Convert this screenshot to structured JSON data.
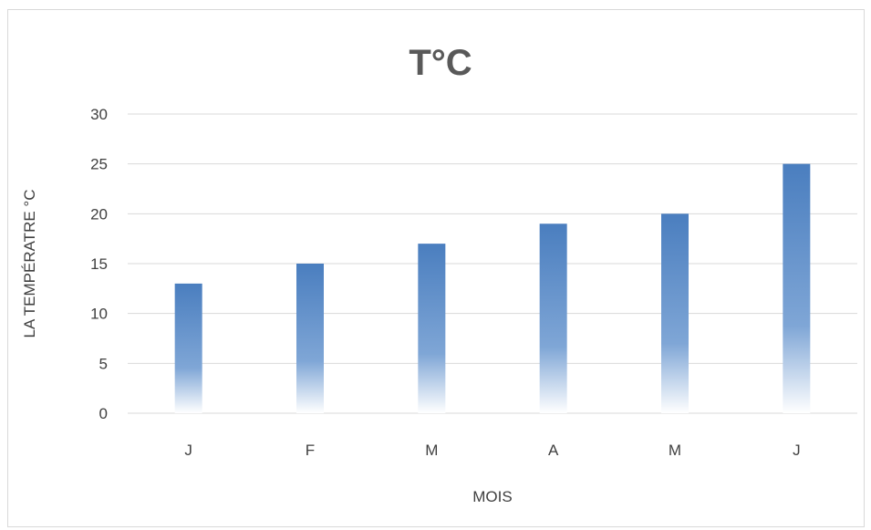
{
  "chart_data": {
    "type": "bar",
    "title": "T°C",
    "xlabel": "MOIS",
    "ylabel": "LA TEMPÉRATRE °C",
    "categories": [
      "J",
      "F",
      "M",
      "A",
      "M",
      "J"
    ],
    "values": [
      13,
      15,
      17,
      19,
      20,
      25
    ],
    "ylim": [
      0,
      30
    ],
    "yticks": [
      "0",
      "5",
      "10",
      "15",
      "20",
      "25",
      "30"
    ],
    "grid": true,
    "legend": "none",
    "colors": {
      "bar": "#4a7ebf",
      "bar_fade": "#ffffff",
      "grid": "#d9d9d9",
      "text": "#404040",
      "title": "#595959"
    }
  }
}
